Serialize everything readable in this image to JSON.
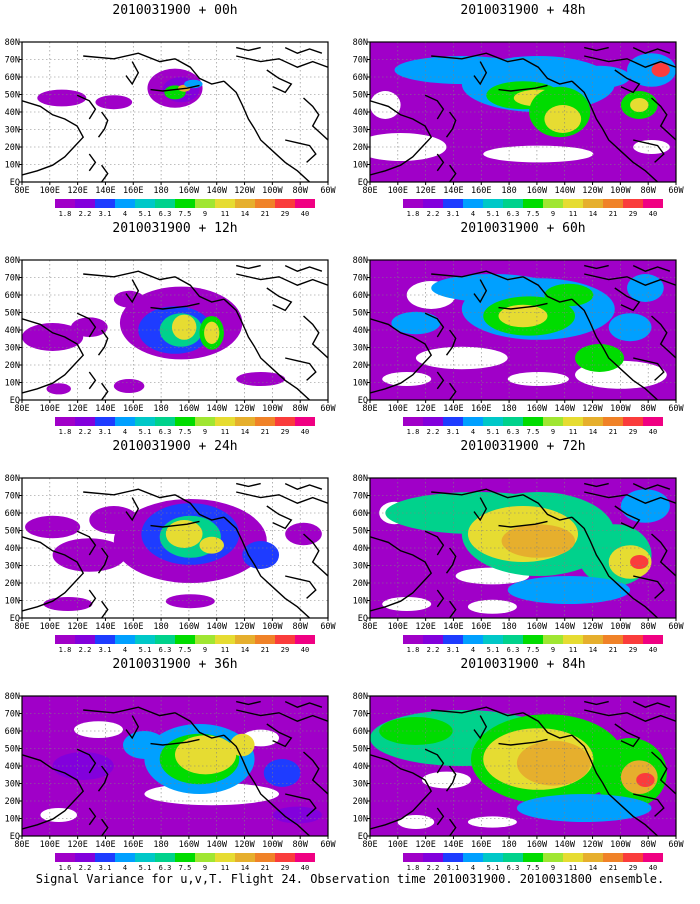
{
  "caption": "Signal Variance for u,v,T. Flight 24. Observation time 2010031900. 2010031800 ensemble.",
  "colors": {
    "scale": [
      "#a000c8",
      "#8200dc",
      "#1e3cff",
      "#00a0ff",
      "#00c8c8",
      "#00d28c",
      "#00dc00",
      "#a0e632",
      "#e6dc32",
      "#e6af2d",
      "#f08228",
      "#fa3c3c",
      "#f00082"
    ],
    "coast": "#000000",
    "grid": "#808080",
    "background": "#ffffff"
  },
  "chart_data": [
    {
      "type": "heatmap",
      "title": "2010031900 + 00h",
      "forecast_hour": 0
    },
    {
      "type": "heatmap",
      "title": "2010031900 + 12h",
      "forecast_hour": 12
    },
    {
      "type": "heatmap",
      "title": "2010031900 + 24h",
      "forecast_hour": 24
    },
    {
      "type": "heatmap",
      "title": "2010031900 + 36h",
      "forecast_hour": 36
    },
    {
      "type": "heatmap",
      "title": "2010031900 + 48h",
      "forecast_hour": 48
    },
    {
      "type": "heatmap",
      "title": "2010031900 + 60h",
      "forecast_hour": 60
    },
    {
      "type": "heatmap",
      "title": "2010031900 + 72h",
      "forecast_hour": 72
    },
    {
      "type": "heatmap",
      "title": "2010031900 + 84h",
      "forecast_hour": 84
    }
  ],
  "axes": {
    "x_ticks": [
      "80E",
      "100E",
      "120E",
      "140E",
      "160E",
      "180",
      "160W",
      "140W",
      "120W",
      "100W",
      "80W",
      "60W"
    ],
    "x_range": [
      "80E",
      "60W"
    ],
    "y_ticks": [
      "EQ",
      "10N",
      "20N",
      "30N",
      "40N",
      "50N",
      "60N",
      "70N",
      "80N"
    ],
    "y_range": [
      "EQ",
      "80N"
    ],
    "grid": true
  },
  "colorbar": {
    "levels": [
      "1.8",
      "2.2",
      "3.1",
      "4",
      "5.1",
      "6.3",
      "7.5",
      "9",
      "11",
      "14",
      "21",
      "29",
      "40"
    ],
    "levels_last_panel": [
      "1.6",
      "2.2",
      "3.1",
      "4",
      "5.1",
      "6.3",
      "7.5",
      "9",
      "11",
      "14",
      "21",
      "29",
      "40"
    ]
  }
}
